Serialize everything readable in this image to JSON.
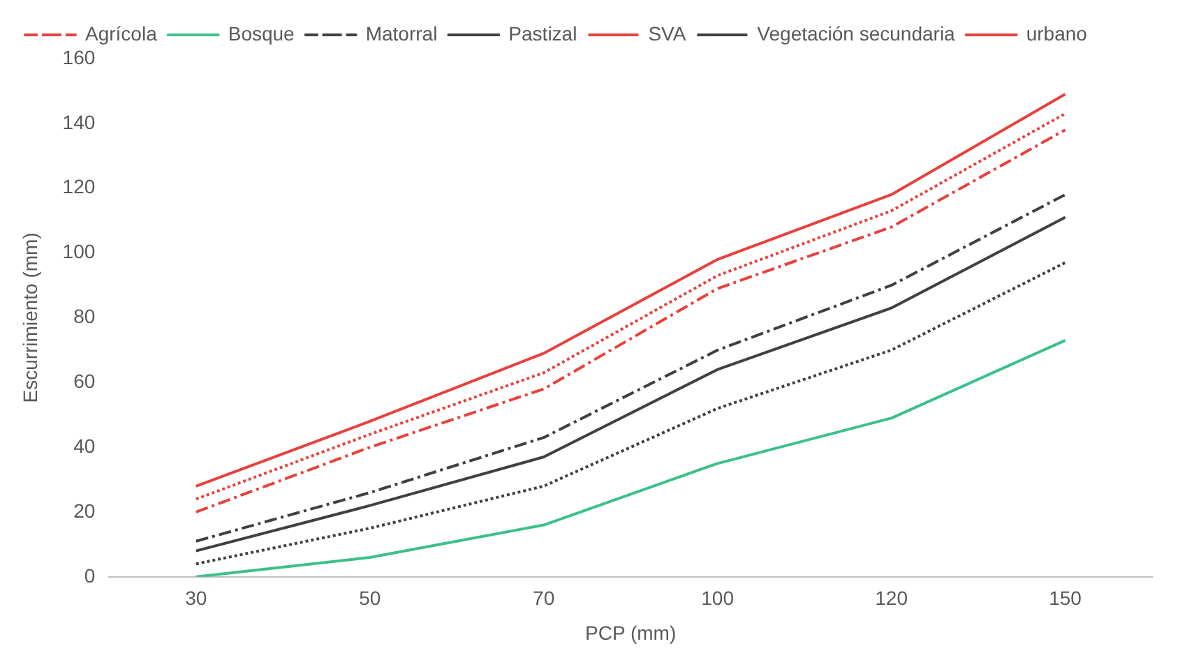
{
  "chart_data": {
    "type": "line",
    "xlabel": "PCP (mm)",
    "ylabel": "Escurrimiento (mm)",
    "categories": [
      "30",
      "50",
      "70",
      "100",
      "120",
      "150"
    ],
    "ylim": [
      0,
      160
    ],
    "yticks": [
      0,
      20,
      40,
      60,
      80,
      100,
      120,
      140,
      160
    ],
    "grid": false,
    "legend": "top left",
    "marker": "none",
    "series": [
      {
        "name": "Agrícola",
        "color": "#e8413c",
        "line_style": "dashdot",
        "values": [
          20,
          40,
          58,
          89,
          108,
          138
        ]
      },
      {
        "name": "Bosque",
        "color": "#3cc08a",
        "line_style": "solid",
        "values": [
          0,
          6,
          16,
          35,
          49,
          73
        ]
      },
      {
        "name": "Matorral",
        "color": "#404040",
        "line_style": "dashdot",
        "values": [
          11,
          26,
          43,
          70,
          90,
          118
        ]
      },
      {
        "name": "Pastizal",
        "color": "#404040",
        "line_style": "solid",
        "values": [
          8,
          22,
          37,
          64,
          83,
          111
        ]
      },
      {
        "name": "SVA",
        "color": "#e8413c",
        "line_style": "dotted",
        "values": [
          24,
          44,
          63,
          93,
          113,
          143
        ]
      },
      {
        "name": "Vegetación secundaria",
        "color": "#404040",
        "line_style": "dotted",
        "values": [
          4,
          15,
          28,
          52,
          70,
          97
        ]
      },
      {
        "name": "urbano",
        "color": "#e8413c",
        "line_style": "solid",
        "values": [
          28,
          48,
          69,
          98,
          118,
          149
        ]
      }
    ]
  }
}
